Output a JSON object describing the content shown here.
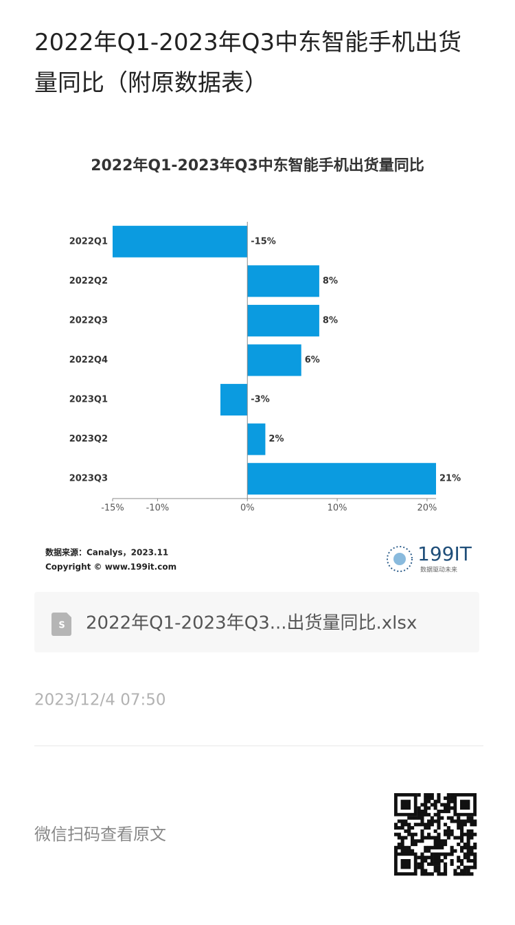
{
  "page_title": "2022年Q1-2023年Q3中东智能手机出货量同比（附原数据表）",
  "chart_data": {
    "type": "barh",
    "title": "2022年Q1-2023年Q3中东智能手机出货量同比",
    "categories": [
      "2022Q1",
      "2022Q2",
      "2022Q3",
      "2022Q4",
      "2023Q1",
      "2023Q2",
      "2023Q3"
    ],
    "values": [
      -15,
      8,
      8,
      6,
      -3,
      2,
      21
    ],
    "value_labels": [
      "-15%",
      "8%",
      "8%",
      "6%",
      "-3%",
      "2%",
      "21%"
    ],
    "color": "#0b9be0",
    "xlim": [
      -15,
      21
    ],
    "xticks": [
      {
        "value": -15,
        "label": "-15%"
      },
      {
        "value": -10,
        "label": "-10%"
      },
      {
        "value": 0,
        "label": "0%"
      },
      {
        "value": 10,
        "label": "10%"
      },
      {
        "value": 20,
        "label": "20%"
      }
    ],
    "source": "数据来源：Canalys，2023.11",
    "copyright": "Copyright © www.199it.com"
  },
  "logo": {
    "name": "199IT",
    "slogan": "数据驱动未来"
  },
  "attachment": {
    "icon": "S",
    "name": "2022年Q1-2023年Q3...出货量同比.xlsx"
  },
  "timestamp": "2023/12/4 07:50",
  "qr_caption": "微信扫码查看原文"
}
